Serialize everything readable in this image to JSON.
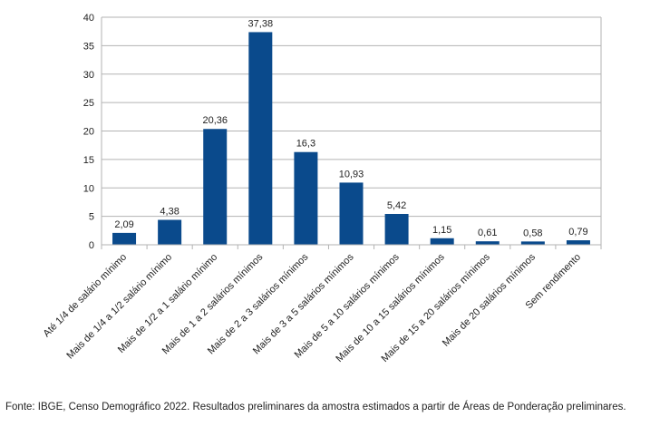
{
  "chart_data": {
    "type": "bar",
    "title": "",
    "xlabel": "",
    "ylabel": "",
    "ylim": [
      0,
      40
    ],
    "yticks": [
      0,
      5,
      10,
      15,
      20,
      25,
      30,
      35,
      40
    ],
    "grid": true,
    "legend": "none",
    "bar_color": "#0a4a8c",
    "categories": [
      "Até 1/4 de salário mínimo",
      "Mais de 1/4 a 1/2 salário mínimo",
      "Mais de 1/2 a 1 salário mínimo",
      "Mais de 1 a 2 salários mínimos",
      "Mais de 2 a 3 salários mínimos",
      "Mais de 3 a 5 salários mínimos",
      "Mais de 5 a 10 salários mínimos",
      "Mais de 10 a 15 salários mínimos",
      "Mais de 15 a 20 salários mínimos",
      "Mais de 20 salários mínimos",
      "Sem rendimento"
    ],
    "values": [
      2.09,
      4.38,
      20.36,
      37.38,
      16.3,
      10.93,
      5.42,
      1.15,
      0.61,
      0.58,
      0.79
    ],
    "value_labels": [
      "2,09",
      "4,38",
      "20,36",
      "37,38",
      "16,3",
      "10,93",
      "5,42",
      "1,15",
      "0,61",
      "0,58",
      "0,79"
    ]
  },
  "footer": {
    "source": "Fonte: IBGE, Censo Demográfico 2022. Resultados preliminares da amostra estimados a partir de Áreas de Ponderação preliminares."
  }
}
